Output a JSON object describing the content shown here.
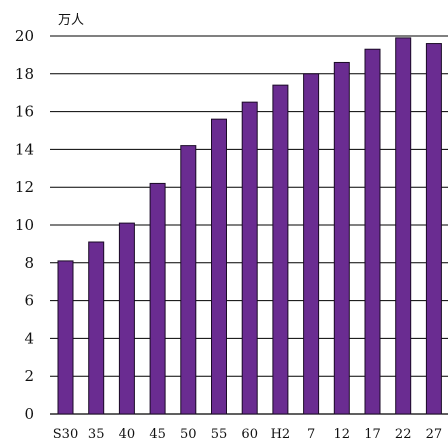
{
  "chart_data": {
    "type": "bar",
    "title": "",
    "ylabel": "万人",
    "xlabel": "",
    "ylim": [
      0,
      20
    ],
    "yticks": [
      0,
      2,
      4,
      6,
      8,
      10,
      12,
      14,
      16,
      18,
      20
    ],
    "grid": true,
    "categories": [
      "S30",
      "35",
      "40",
      "45",
      "50",
      "55",
      "60",
      "H2",
      "7",
      "12",
      "17",
      "22",
      "27"
    ],
    "values": [
      8.1,
      9.1,
      10.1,
      12.2,
      14.2,
      15.6,
      16.5,
      17.4,
      18.0,
      18.6,
      19.3,
      19.9,
      19.6
    ],
    "colors": {
      "bar": "#6a2c91",
      "grid": "#000000"
    }
  }
}
